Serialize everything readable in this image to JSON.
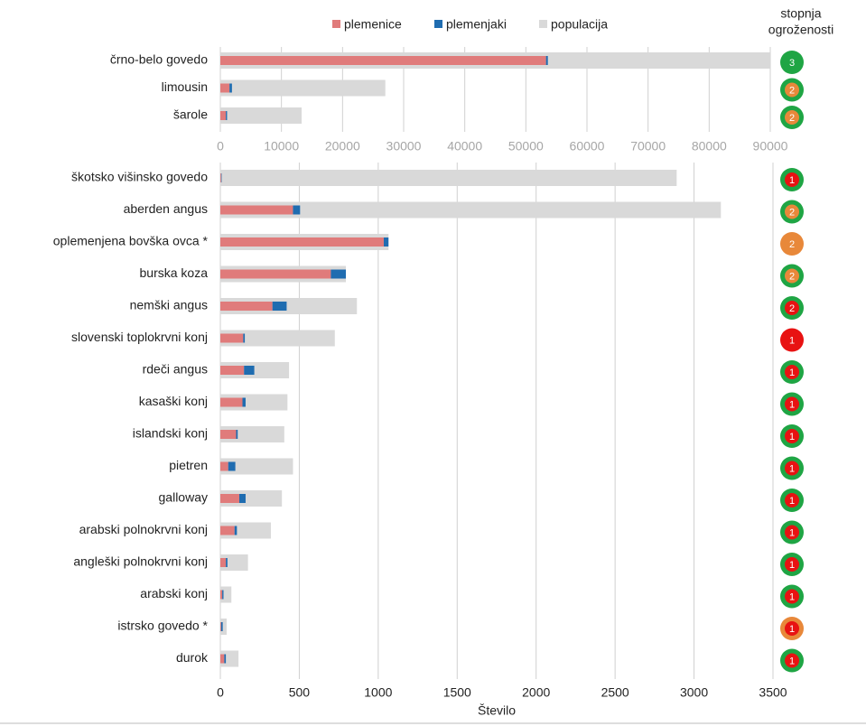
{
  "legend_title_lines": [
    "stopnja",
    "ogroženosti"
  ],
  "chart_data": [
    {
      "type": "bar",
      "orientation": "horizontal",
      "categories": [
        "črno-belo govedo",
        "limousin",
        "šarole"
      ],
      "series": [
        {
          "name": "plemenice",
          "color": "#e07b7b",
          "values": [
            53300,
            1500,
            900
          ]
        },
        {
          "name": "plemenjaki",
          "color": "#1f6cb0",
          "values": [
            300,
            400,
            200
          ]
        },
        {
          "name": "populacija",
          "color": "#d9d9d9",
          "values": [
            90000,
            27000,
            13300
          ]
        }
      ],
      "xlim": [
        0,
        90000
      ],
      "xticks": [
        0,
        10000,
        20000,
        30000,
        40000,
        50000,
        60000,
        70000,
        80000,
        90000
      ],
      "grid": true,
      "threat_levels": [
        3,
        2,
        2
      ],
      "threat_colors": [
        {
          "ring": "#1fa544",
          "core": "#1fa544"
        },
        {
          "ring": "#1fa544",
          "core": "#e8883a"
        },
        {
          "ring": "#1fa544",
          "core": "#e8883a"
        }
      ]
    },
    {
      "type": "bar",
      "orientation": "horizontal",
      "categories": [
        "škotsko višinsko govedo",
        "aberden angus",
        "oplemenjena bovška ovca *",
        "burska koza",
        "nemški angus",
        "slovenski toplokrvni konj",
        "rdeči angus",
        "kasaški konj",
        "islandski konj",
        "pietren",
        "galloway",
        "arabski polnokrvni konj",
        "angleški polnokrvni konj",
        "arabski konj",
        "istrsko govedo *",
        "durok"
      ],
      "series": [
        {
          "color": "#e07b7b",
          "values": [
            5,
            460,
            1035,
            700,
            330,
            145,
            150,
            140,
            100,
            50,
            120,
            90,
            35,
            12,
            5,
            25
          ]
        },
        {
          "color": "#1f6cb0",
          "values": [
            3,
            45,
            30,
            95,
            90,
            10,
            65,
            20,
            10,
            45,
            40,
            15,
            10,
            8,
            10,
            10
          ]
        },
        {
          "color": "#d9d9d9",
          "values": [
            2890,
            3170,
            1065,
            795,
            865,
            725,
            435,
            425,
            405,
            460,
            390,
            320,
            175,
            70,
            40,
            115
          ]
        }
      ],
      "xlim": [
        0,
        3500
      ],
      "xticks": [
        0,
        500,
        1000,
        1500,
        2000,
        2500,
        3000,
        3500
      ],
      "grid": true,
      "xlabel": "Število",
      "threat_levels": [
        1,
        2,
        2,
        2,
        2,
        1,
        1,
        1,
        1,
        1,
        1,
        1,
        1,
        1,
        1,
        1
      ],
      "threat_colors": [
        {
          "ring": "#1fa544",
          "core": "#e81212"
        },
        {
          "ring": "#1fa544",
          "core": "#e8883a"
        },
        {
          "ring": "#e8883a",
          "core": "#e8883a"
        },
        {
          "ring": "#1fa544",
          "core": "#e8883a"
        },
        {
          "ring": "#1fa544",
          "core": "#e81212"
        },
        {
          "ring": "#e81212",
          "core": "#e81212"
        },
        {
          "ring": "#1fa544",
          "core": "#e81212"
        },
        {
          "ring": "#1fa544",
          "core": "#e81212"
        },
        {
          "ring": "#1fa544",
          "core": "#e81212"
        },
        {
          "ring": "#1fa544",
          "core": "#e81212"
        },
        {
          "ring": "#1fa544",
          "core": "#e81212"
        },
        {
          "ring": "#1fa544",
          "core": "#e81212"
        },
        {
          "ring": "#1fa544",
          "core": "#e81212"
        },
        {
          "ring": "#1fa544",
          "core": "#e81212"
        },
        {
          "ring": "#e8883a",
          "core": "#e81212"
        },
        {
          "ring": "#1fa544",
          "core": "#e81212"
        }
      ]
    }
  ]
}
